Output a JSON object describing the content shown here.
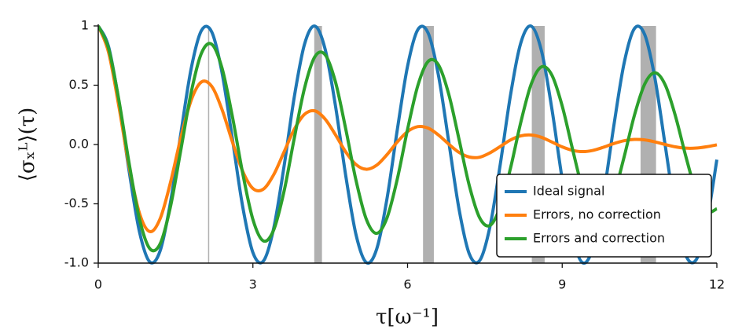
{
  "chart_data": {
    "type": "line",
    "xlabel": "τ[ω⁻¹]",
    "ylabel": "⟨σₓᴸ⟩(τ)",
    "x": [
      0,
      0.2,
      0.4,
      0.6,
      0.8,
      1,
      1.2,
      1.4,
      1.6,
      1.8,
      2,
      2.2,
      2.4,
      2.6,
      2.8,
      3,
      3.2,
      3.4,
      3.6,
      3.8,
      4,
      4.2,
      4.4,
      4.6,
      4.8,
      5,
      5.2,
      5.4,
      5.6,
      5.8,
      6,
      6.2,
      6.4,
      6.6,
      6.8,
      7,
      7.2,
      7.4,
      7.6,
      7.8,
      8,
      8.2,
      8.4,
      8.6,
      8.8,
      9,
      9.2,
      9.4,
      9.6,
      9.8,
      10,
      10.2,
      10.4,
      10.6,
      10.8,
      11,
      11.2,
      11.4,
      11.6,
      11.8,
      12
    ],
    "series": [
      {
        "name": "Ideal signal",
        "color": "#1f77b4",
        "values": [
          1,
          0.825,
          0.362,
          -0.227,
          -0.737,
          -0.99,
          -0.897,
          -0.49,
          0.087,
          0.635,
          0.96,
          0.95,
          0.608,
          0.054,
          -0.519,
          -0.911,
          -0.985,
          -0.713,
          -0.196,
          0.394,
          0.844,
          0.999,
          0.806,
          0.331,
          -0.26,
          -0.76,
          -0.995,
          -0.883,
          -0.46,
          0.121,
          0.66,
          0.969,
          0.939,
          0.582,
          0.021,
          -0.548,
          -0.925,
          -0.978,
          -0.69,
          -0.163,
          0.424,
          0.861,
          0.998,
          0.786,
          0.3,
          -0.292,
          -0.781,
          -0.998,
          -0.867,
          -0.431,
          0.154,
          0.684,
          0.977,
          0.927,
          0.555,
          -0.013,
          -0.577,
          -0.937,
          -0.971,
          -0.666,
          -0.128
        ]
      },
      {
        "name": "Errors, no correction",
        "color": "#ff7f0e",
        "values": [
          1,
          0.777,
          0.321,
          -0.19,
          -0.58,
          -0.734,
          -0.626,
          -0.322,
          0.054,
          0.37,
          0.527,
          0.491,
          0.296,
          0.025,
          -0.224,
          -0.371,
          -0.377,
          -0.257,
          -0.067,
          0.126,
          0.254,
          0.284,
          0.215,
          0.083,
          -0.062,
          -0.169,
          -0.209,
          -0.175,
          -0.086,
          0.021,
          0.109,
          0.151,
          0.138,
          0.08,
          0.003,
          -0.067,
          -0.106,
          -0.107,
          -0.07,
          -0.016,
          0.039,
          0.073,
          0.08,
          0.06,
          0.021,
          -0.02,
          -0.049,
          -0.06,
          -0.049,
          -0.023,
          0.008,
          0.032,
          0.043,
          0.039,
          0.022,
          0,
          -0.02,
          -0.031,
          -0.03,
          -0.019,
          -0.003
        ]
      },
      {
        "name": "Errors and correction",
        "color": "#2ca02c",
        "values": [
          1,
          0.81,
          0.375,
          -0.161,
          -0.629,
          -0.878,
          -0.838,
          -0.526,
          -0.051,
          0.434,
          0.768,
          0.846,
          0.646,
          0.24,
          -0.238,
          -0.632,
          -0.812,
          -0.724,
          -0.403,
          0.047,
          0.473,
          0.739,
          0.758,
          0.53,
          0.133,
          -0.302,
          -0.63,
          -0.749,
          -0.62,
          -0.293,
          0.127,
          0.498,
          0.701,
          0.671,
          0.423,
          0.041,
          -0.35,
          -0.619,
          -0.682,
          -0.522,
          -0.194,
          0.193,
          0.511,
          0.655,
          0.585,
          0.325,
          -0.038,
          -0.383,
          -0.598,
          -0.613,
          -0.428,
          -0.107,
          0.245,
          0.509,
          0.605,
          0.501,
          0.235,
          -0.103,
          -0.404,
          -0.566,
          -0.542
        ]
      }
    ],
    "spans": [
      [
        2.13,
        2.14
      ],
      [
        4.19,
        4.34
      ],
      [
        6.3,
        6.51
      ],
      [
        8.41,
        8.66
      ],
      [
        10.52,
        10.82
      ]
    ],
    "span_color": "#b0b0b0",
    "xlim": [
      0,
      12
    ],
    "xticks": [
      0,
      3,
      6,
      9,
      12
    ],
    "ylim": [
      -1,
      1
    ],
    "yticks": [
      {
        "value": -1,
        "label": "-1.0"
      },
      -0.5,
      {
        "value": 0,
        "label": "0.0"
      },
      0.5,
      1
    ],
    "legend": "lower right"
  }
}
